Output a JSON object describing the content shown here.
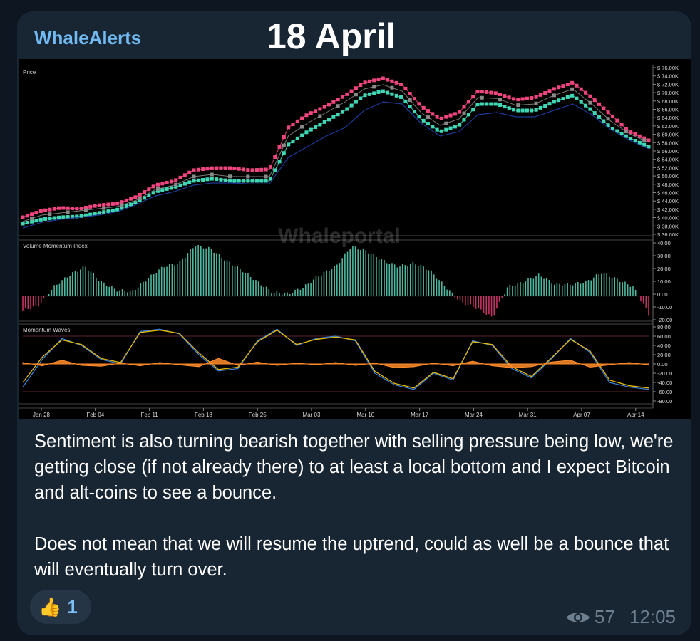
{
  "post": {
    "sender": "WhaleAlerts",
    "headline": "18 April",
    "paragraphs": [
      "Sentiment is also turning bearish together with selling pressure being low, we're getting close (if not already there) to at least a local bottom and I expect Bitcoin and alt-coins to see a bounce.",
      "Does not mean that we will resume the uptrend, could as well be a bounce that will eventually turn over."
    ],
    "reaction": {
      "emoji": "👍",
      "count": "1"
    },
    "views": "57",
    "time": "12:05",
    "icons": {
      "views": "eye-icon",
      "reaction": "thumbs-up-emoji"
    }
  },
  "chart_data": {
    "type": "line",
    "watermark": "Whaleportal",
    "x_ticks": [
      "Jan 28",
      "Feb 04",
      "Feb 11",
      "Feb 18",
      "Feb 25",
      "Mar 03",
      "Mar 10",
      "Mar 17",
      "Mar 24",
      "Mar 31",
      "Apr 07",
      "Apr 14"
    ],
    "panels": [
      {
        "name": "Price",
        "ylim": [
          37000,
          76000
        ],
        "y_ticks": [
          "$ 76.00K",
          "$ 74.00K",
          "$ 72.00K",
          "$ 70.00K",
          "$ 68.00K",
          "$ 66.00K",
          "$ 64.00K",
          "$ 62.00K",
          "$ 60.00K",
          "$ 58.00K",
          "$ 56.00K",
          "$ 54.00K",
          "$ 52.00K",
          "$ 50.00K",
          "$ 48.00K",
          "$ 46.00K",
          "$ 44.00K",
          "$ 42.00K",
          "$ 40.00K",
          "$ 38.00K",
          "$ 36.00K"
        ],
        "series": [
          {
            "color": "#f0457e",
            "values": [
              41000,
              42500,
              43200,
              43000,
              43800,
              44200,
              45800,
              48500,
              49500,
              52000,
              52500,
              52500,
              52000,
              52200,
              62000,
              65000,
              67000,
              69500,
              72500,
              73500,
              72000,
              67000,
              64000,
              65500,
              70500,
              70000,
              68500,
              69000,
              71000,
              72500,
              69000,
              65000,
              61000,
              59000
            ]
          },
          {
            "color": "#3fd7b5",
            "values": [
              39500,
              40500,
              41000,
              41200,
              42000,
              42800,
              44500,
              47000,
              48000,
              49500,
              50000,
              49500,
              49500,
              49500,
              58000,
              61000,
              63500,
              66000,
              69500,
              70500,
              69000,
              64000,
              61000,
              62500,
              67500,
              67500,
              66000,
              66000,
              68000,
              69500,
              66000,
              62000,
              59500,
              57500
            ]
          },
          {
            "color": "#8a8a8a",
            "values": [
              40000,
              41500,
              42000,
              42500,
              43000,
              43500,
              45000,
              47500,
              48500,
              50500,
              51000,
              50500,
              50500,
              50500,
              60000,
              63000,
              65500,
              68000,
              71000,
              72000,
              70500,
              65500,
              62500,
              64000,
              69000,
              68800,
              67200,
              67500,
              69500,
              71000,
              67500,
              63500,
              60500,
              58500
            ]
          },
          {
            "color": "#1f3fa5",
            "values": [
              38500,
              39800,
              40500,
              41000,
              41500,
              42300,
              44000,
              46000,
              47000,
              48500,
              49000,
              49000,
              48800,
              48800,
              55000,
              57500,
              60000,
              62000,
              66000,
              68000,
              67500,
              63000,
              60000,
              61000,
              65000,
              65500,
              64500,
              64500,
              66000,
              67500,
              65000,
              61500,
              59000,
              57000
            ]
          }
        ]
      },
      {
        "name": "Volume Momentum Index",
        "ylim": [
          -20,
          45
        ],
        "y_ticks": [
          "40.00",
          "30.00",
          "20.00",
          "10.00",
          "0.00",
          "-10.00",
          "-20.00"
        ],
        "values": [
          -12,
          -8,
          8,
          18,
          25,
          12,
          5,
          4,
          15,
          25,
          28,
          43,
          40,
          30,
          22,
          12,
          3,
          2,
          8,
          18,
          25,
          42,
          38,
          30,
          25,
          28,
          22,
          8,
          -5,
          -10,
          -18,
          8,
          12,
          18,
          10,
          10,
          12,
          20,
          14,
          8,
          -15
        ]
      },
      {
        "name": "Momentum Waves",
        "ylim": [
          -80,
          80
        ],
        "y_ticks": [
          "80.00",
          "60.00",
          "40.00",
          "20.00",
          "0.00",
          "-20.00",
          "-40.00",
          "-60.00",
          "-80.00"
        ],
        "series": [
          {
            "color": "#3a7fd6",
            "values": [
              -50,
              10,
              55,
              40,
              10,
              0,
              70,
              75,
              65,
              20,
              -15,
              -10,
              50,
              75,
              40,
              55,
              60,
              50,
              -20,
              -45,
              -55,
              -20,
              -35,
              50,
              40,
              -10,
              -30,
              10,
              55,
              25,
              -40,
              -50,
              -55
            ]
          },
          {
            "color": "#e6b800",
            "values": [
              -40,
              15,
              52,
              42,
              12,
              3,
              68,
              73,
              66,
              24,
              -12,
              -7,
              48,
              73,
              42,
              53,
              58,
              52,
              -16,
              -42,
              -52,
              -18,
              -32,
              48,
              42,
              -6,
              -27,
              12,
              53,
              28,
              -35,
              -47,
              -52
            ]
          },
          {
            "color": "#ff8c2a",
            "values": [
              3,
              -4,
              8,
              -3,
              -5,
              2,
              -4,
              3,
              -2,
              -6,
              12,
              -3,
              4,
              -3,
              2,
              -2,
              3,
              -3,
              2,
              -8,
              -6,
              2,
              -4,
              6,
              -4,
              -8,
              -6,
              4,
              8,
              -7,
              -2,
              3,
              -2
            ]
          }
        ]
      }
    ]
  }
}
